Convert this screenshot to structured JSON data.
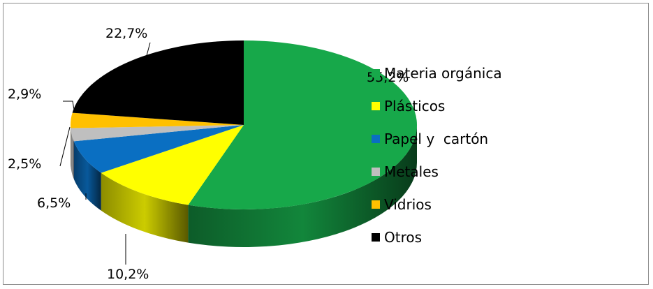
{
  "chart_data": {
    "type": "pie",
    "style": "3d",
    "title": "",
    "categories": [
      "Materia orgánica",
      "Plásticos",
      "Papel y  cartón",
      "Metales",
      "Vidrios",
      "Otros"
    ],
    "values": [
      55.2,
      10.2,
      6.5,
      2.5,
      2.9,
      22.7
    ],
    "value_labels": [
      "55,2%",
      "10,2%",
      "6,5%",
      "2,5%",
      "2,9%",
      "22,7%"
    ],
    "colors": [
      "#17a84a",
      "#ffff00",
      "#0a6fc2",
      "#bfbfbf",
      "#ffc000",
      "#000000"
    ],
    "legend": "right"
  }
}
